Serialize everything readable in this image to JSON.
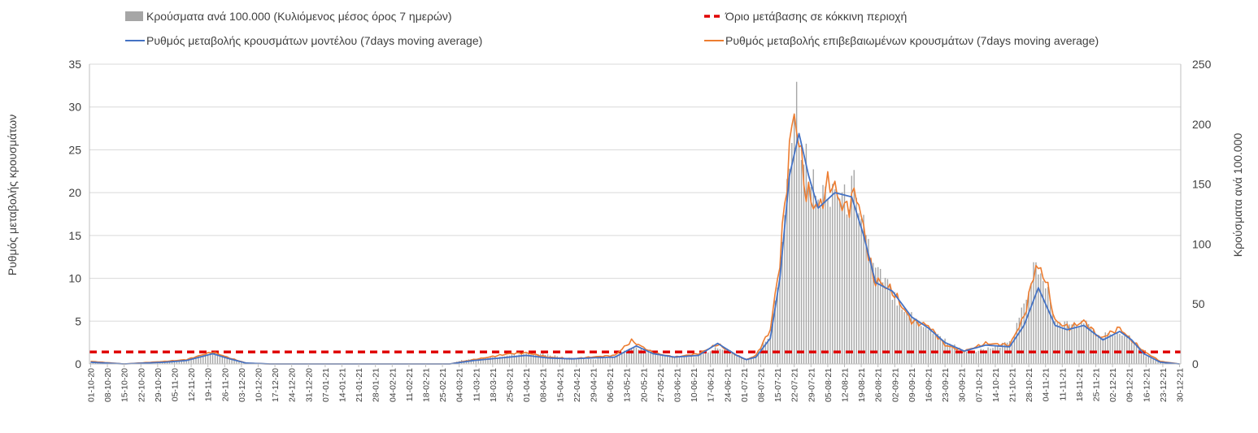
{
  "chart_data": {
    "type": "bar+line",
    "title": "",
    "y_left": {
      "label": "Ρυθμός μεταβολής κρουσμάτων",
      "lim": [
        0,
        35
      ],
      "ticks": [
        0,
        5,
        10,
        15,
        20,
        25,
        30,
        35
      ]
    },
    "y_right": {
      "label": "Κρούσματα ανά 100.000",
      "lim": [
        0,
        250
      ],
      "ticks": [
        0,
        50,
        100,
        150,
        200,
        250
      ]
    },
    "x_range": [
      "2020-10-01",
      "2021-12-30"
    ],
    "x_tick_labels": [
      "01-10-20",
      "08-10-20",
      "15-10-20",
      "22-10-20",
      "29-10-20",
      "05-11-20",
      "12-11-20",
      "19-11-20",
      "26-11-20",
      "03-12-20",
      "10-12-20",
      "17-12-20",
      "24-12-20",
      "31-12-20",
      "07-01-21",
      "14-01-21",
      "21-01-21",
      "28-01-21",
      "04-02-21",
      "11-02-21",
      "18-02-21",
      "25-02-21",
      "04-03-21",
      "11-03-21",
      "18-03-21",
      "25-03-21",
      "01-04-21",
      "08-04-21",
      "15-04-21",
      "22-04-21",
      "29-04-21",
      "06-05-21",
      "13-05-21",
      "20-05-21",
      "27-05-21",
      "03-06-21",
      "10-06-21",
      "17-06-21",
      "24-06-21",
      "01-07-21",
      "08-07-21",
      "15-07-21",
      "22-07-21",
      "29-07-21",
      "05-08-21",
      "12-08-21",
      "19-08-21",
      "26-08-21",
      "02-09-21",
      "09-09-21",
      "16-09-21",
      "23-09-21",
      "30-09-21",
      "07-10-21",
      "14-10-21",
      "21-10-21",
      "28-10-21",
      "04-11-21",
      "11-11-21",
      "18-11-21",
      "25-11-21",
      "02-12-21",
      "09-12-21",
      "16-12-21",
      "23-12-21",
      "30-12-21"
    ],
    "legend": {
      "placement": "top",
      "entries": [
        {
          "name": "Κρούσματα ανά 100.000 (Κυλιόμενος μέσος όρος 7 ημερών)",
          "type": "bar",
          "color": "#a6a6a6"
        },
        {
          "name": "Όριο μετάβασης σε κόκκινη περιοχή",
          "type": "dashed-line",
          "color": "#e00000"
        },
        {
          "name": "Ρυθμός μεταβολής κρουσμάτων μοντέλου (7days moving average)",
          "type": "line",
          "color": "#4472c4"
        },
        {
          "name": "Ρυθμός μεταβολής επιβεβαιωμένων κρουσμάτων (7days moving average)",
          "type": "line",
          "color": "#ed7d31"
        }
      ]
    },
    "threshold": {
      "axis": "left",
      "value": 1.4
    },
    "series_cases_per_100k_anchors": [
      [
        "2020-10-01",
        1
      ],
      [
        "2020-10-12",
        0
      ],
      [
        "2020-10-27",
        0
      ],
      [
        "2020-11-01",
        2
      ],
      [
        "2020-11-10",
        3
      ],
      [
        "2020-11-17",
        8
      ],
      [
        "2020-11-21",
        10
      ],
      [
        "2020-11-28",
        5
      ],
      [
        "2020-12-05",
        1
      ],
      [
        "2020-12-15",
        0
      ],
      [
        "2021-01-15",
        0
      ],
      [
        "2021-02-28",
        0
      ],
      [
        "2021-03-05",
        3
      ],
      [
        "2021-03-20",
        6
      ],
      [
        "2021-03-28",
        8
      ],
      [
        "2021-04-05",
        9
      ],
      [
        "2021-04-18",
        5
      ],
      [
        "2021-04-30",
        4
      ],
      [
        "2021-05-08",
        6
      ],
      [
        "2021-05-15",
        14
      ],
      [
        "2021-05-22",
        10
      ],
      [
        "2021-05-30",
        6
      ],
      [
        "2021-06-10",
        6
      ],
      [
        "2021-06-21",
        14
      ],
      [
        "2021-06-28",
        8
      ],
      [
        "2021-07-02",
        3
      ],
      [
        "2021-07-05",
        5
      ],
      [
        "2021-07-12",
        25
      ],
      [
        "2021-07-16",
        80
      ],
      [
        "2021-07-20",
        180
      ],
      [
        "2021-07-23",
        225
      ],
      [
        "2021-07-26",
        175
      ],
      [
        "2021-08-01",
        135
      ],
      [
        "2021-08-05",
        145
      ],
      [
        "2021-08-08",
        150
      ],
      [
        "2021-08-12",
        135
      ],
      [
        "2021-08-17",
        150
      ],
      [
        "2021-08-24",
        80
      ],
      [
        "2021-09-01",
        60
      ],
      [
        "2021-09-09",
        40
      ],
      [
        "2021-09-16",
        30
      ],
      [
        "2021-09-23",
        20
      ],
      [
        "2021-10-01",
        10
      ],
      [
        "2021-10-10",
        12
      ],
      [
        "2021-10-21",
        18
      ],
      [
        "2021-10-26",
        50
      ],
      [
        "2021-10-30",
        80
      ],
      [
        "2021-11-03",
        75
      ],
      [
        "2021-11-08",
        35
      ],
      [
        "2021-11-15",
        32
      ],
      [
        "2021-11-20",
        35
      ],
      [
        "2021-11-27",
        22
      ],
      [
        "2021-12-04",
        28
      ],
      [
        "2021-12-08",
        25
      ],
      [
        "2021-12-15",
        8
      ],
      [
        "2021-12-22",
        2
      ],
      [
        "2021-12-30",
        0
      ]
    ],
    "series_model_rate_anchors": [
      [
        "2020-10-01",
        0.2
      ],
      [
        "2020-10-15",
        0
      ],
      [
        "2020-11-01",
        0.2
      ],
      [
        "2020-11-10",
        0.4
      ],
      [
        "2020-11-17",
        0.9
      ],
      [
        "2020-11-21",
        1.2
      ],
      [
        "2020-11-28",
        0.6
      ],
      [
        "2020-12-05",
        0.1
      ],
      [
        "2020-12-15",
        0
      ],
      [
        "2021-02-28",
        0
      ],
      [
        "2021-03-10",
        0.4
      ],
      [
        "2021-03-25",
        0.8
      ],
      [
        "2021-04-01",
        1
      ],
      [
        "2021-04-10",
        0.7
      ],
      [
        "2021-04-20",
        0.6
      ],
      [
        "2021-04-28",
        0.7
      ],
      [
        "2021-05-08",
        0.8
      ],
      [
        "2021-05-17",
        2.1
      ],
      [
        "2021-05-24",
        1.2
      ],
      [
        "2021-06-02",
        0.8
      ],
      [
        "2021-06-12",
        1.0
      ],
      [
        "2021-06-20",
        2.4
      ],
      [
        "2021-06-28",
        1.0
      ],
      [
        "2021-07-02",
        0.5
      ],
      [
        "2021-07-06",
        0.8
      ],
      [
        "2021-07-12",
        3
      ],
      [
        "2021-07-16",
        10
      ],
      [
        "2021-07-20",
        22
      ],
      [
        "2021-07-24",
        26.9
      ],
      [
        "2021-07-28",
        22
      ],
      [
        "2021-08-01",
        18.2
      ],
      [
        "2021-08-08",
        20
      ],
      [
        "2021-08-15",
        19.5
      ],
      [
        "2021-08-20",
        15
      ],
      [
        "2021-08-25",
        9.5
      ],
      [
        "2021-09-01",
        8.5
      ],
      [
        "2021-09-09",
        5.5
      ],
      [
        "2021-09-16",
        4.2
      ],
      [
        "2021-09-23",
        2.5
      ],
      [
        "2021-10-01",
        1.5
      ],
      [
        "2021-10-10",
        2.2
      ],
      [
        "2021-10-20",
        2.0
      ],
      [
        "2021-10-26",
        4.5
      ],
      [
        "2021-11-01",
        8.9
      ],
      [
        "2021-11-08",
        4.5
      ],
      [
        "2021-11-13",
        4.0
      ],
      [
        "2021-11-20",
        4.5
      ],
      [
        "2021-11-28",
        2.8
      ],
      [
        "2021-12-05",
        3.8
      ],
      [
        "2021-12-10",
        2.8
      ],
      [
        "2021-12-15",
        1.2
      ],
      [
        "2021-12-22",
        0.2
      ],
      [
        "2021-12-30",
        0
      ]
    ],
    "series_confirmed_rate_anchors": [
      [
        "2020-10-01",
        0.3
      ],
      [
        "2020-10-15",
        0
      ],
      [
        "2020-11-01",
        0.3
      ],
      [
        "2020-11-10",
        0.5
      ],
      [
        "2020-11-17",
        1.1
      ],
      [
        "2020-11-21",
        1.4
      ],
      [
        "2020-11-28",
        0.7
      ],
      [
        "2020-12-05",
        0.1
      ],
      [
        "2020-12-15",
        0
      ],
      [
        "2021-02-28",
        0
      ],
      [
        "2021-03-10",
        0.5
      ],
      [
        "2021-03-25",
        1.2
      ],
      [
        "2021-04-01",
        1.3
      ],
      [
        "2021-04-10",
        0.8
      ],
      [
        "2021-04-20",
        0.6
      ],
      [
        "2021-04-28",
        0.8
      ],
      [
        "2021-05-08",
        1.0
      ],
      [
        "2021-05-15",
        2.7
      ],
      [
        "2021-05-24",
        1.3
      ],
      [
        "2021-06-02",
        0.8
      ],
      [
        "2021-06-12",
        1.2
      ],
      [
        "2021-06-20",
        2.3
      ],
      [
        "2021-06-28",
        1.0
      ],
      [
        "2021-07-02",
        0.5
      ],
      [
        "2021-07-06",
        1.0
      ],
      [
        "2021-07-12",
        4
      ],
      [
        "2021-07-16",
        12
      ],
      [
        "2021-07-20",
        25
      ],
      [
        "2021-07-22",
        29.5
      ],
      [
        "2021-07-27",
        20
      ],
      [
        "2021-08-01",
        18
      ],
      [
        "2021-08-06",
        21.5
      ],
      [
        "2021-08-12",
        18
      ],
      [
        "2021-08-17",
        20
      ],
      [
        "2021-08-24",
        10
      ],
      [
        "2021-09-01",
        8.5
      ],
      [
        "2021-09-09",
        5
      ],
      [
        "2021-09-16",
        4.5
      ],
      [
        "2021-09-23",
        2.2
      ],
      [
        "2021-10-01",
        1.5
      ],
      [
        "2021-10-10",
        2.4
      ],
      [
        "2021-10-20",
        2.2
      ],
      [
        "2021-10-26",
        5.5
      ],
      [
        "2021-10-31",
        11.5
      ],
      [
        "2021-11-04",
        10
      ],
      [
        "2021-11-08",
        5
      ],
      [
        "2021-11-14",
        4.2
      ],
      [
        "2021-11-20",
        5
      ],
      [
        "2021-11-27",
        3
      ],
      [
        "2021-12-05",
        4.2
      ],
      [
        "2021-12-09",
        3.0
      ],
      [
        "2021-12-15",
        1.5
      ],
      [
        "2021-12-22",
        0.3
      ],
      [
        "2021-12-30",
        0
      ]
    ]
  }
}
